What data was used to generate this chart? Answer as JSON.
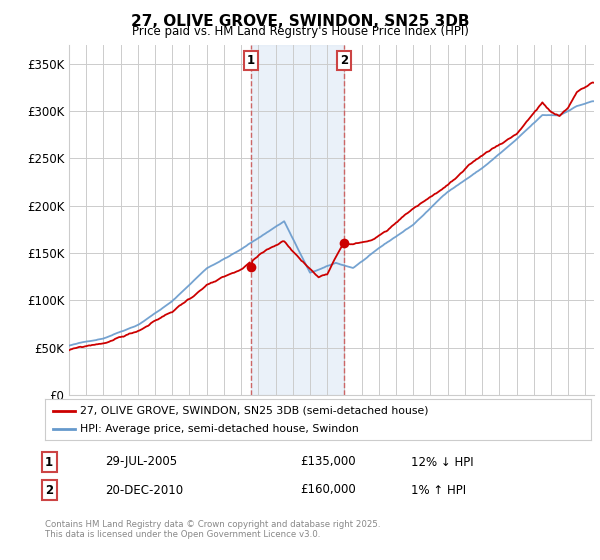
{
  "title": "27, OLIVE GROVE, SWINDON, SN25 3DB",
  "subtitle": "Price paid vs. HM Land Registry's House Price Index (HPI)",
  "ylabel_ticks": [
    "£0",
    "£50K",
    "£100K",
    "£150K",
    "£200K",
    "£250K",
    "£300K",
    "£350K"
  ],
  "ytick_values": [
    0,
    50000,
    100000,
    150000,
    200000,
    250000,
    300000,
    350000
  ],
  "ylim": [
    0,
    370000
  ],
  "xlim_start": 1995.0,
  "xlim_end": 2025.5,
  "transaction1": {
    "date_num": 2005.57,
    "price": 135000,
    "label": "1",
    "date_str": "29-JUL-2005",
    "pct": "12%",
    "dir": "↓"
  },
  "transaction2": {
    "date_num": 2010.97,
    "price": 160000,
    "label": "2",
    "date_str": "20-DEC-2010",
    "pct": "1%",
    "dir": "↑"
  },
  "legend_entry1": "27, OLIVE GROVE, SWINDON, SN25 3DB (semi-detached house)",
  "legend_entry2": "HPI: Average price, semi-detached house, Swindon",
  "footer": "Contains HM Land Registry data © Crown copyright and database right 2025.\nThis data is licensed under the Open Government Licence v3.0.",
  "table_row1": [
    "1",
    "29-JUL-2005",
    "£135,000",
    "12% ↓ HPI"
  ],
  "table_row2": [
    "2",
    "20-DEC-2010",
    "£160,000",
    "1% ↑ HPI"
  ],
  "line_color_red": "#cc0000",
  "line_color_blue": "#6699cc",
  "vline_color": "#cc6666",
  "dot_color_red": "#cc0000",
  "bg_band_color": "#dde8f5",
  "grid_color": "#cccccc",
  "background_color": "#ffffff",
  "box_border_color": "#cc4444"
}
